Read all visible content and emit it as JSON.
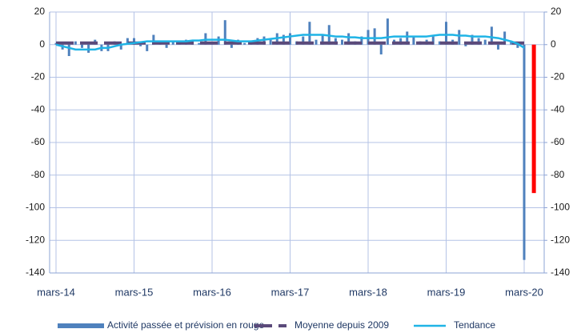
{
  "chart_data": {
    "type": "bar",
    "categories": [
      "mars-14",
      null,
      null,
      null,
      null,
      null,
      null,
      null,
      null,
      null,
      null,
      null,
      "mars-15",
      null,
      null,
      null,
      null,
      null,
      null,
      null,
      null,
      null,
      null,
      null,
      "mars-16",
      null,
      null,
      null,
      null,
      null,
      null,
      null,
      null,
      null,
      null,
      null,
      "mars-17",
      null,
      null,
      null,
      null,
      null,
      null,
      null,
      null,
      null,
      null,
      null,
      "mars-18",
      null,
      null,
      null,
      null,
      null,
      null,
      null,
      null,
      null,
      null,
      null,
      "mars-19",
      null,
      null,
      null,
      null,
      null,
      null,
      null,
      null,
      null,
      null,
      null,
      "mars-20",
      null
    ],
    "series": [
      {
        "name": "Activité passée et prévision en rouge",
        "type": "bar",
        "color": "#4f81bd",
        "last_color": "#ff0000",
        "values": [
          1,
          -3,
          -7,
          2,
          -2,
          -5,
          3,
          -4,
          -4,
          2,
          -3,
          4,
          4,
          -1,
          -4,
          6,
          1,
          -2,
          2,
          1,
          3,
          2,
          1,
          7,
          1,
          5,
          15,
          -2,
          3,
          1,
          2,
          4,
          5,
          3,
          7,
          6,
          7,
          2,
          5,
          14,
          3,
          6,
          12,
          4,
          3,
          7,
          2,
          5,
          9,
          10,
          -6,
          16,
          3,
          4,
          8,
          5,
          2,
          3,
          5,
          2,
          14,
          3,
          9,
          -1,
          6,
          4,
          3,
          11,
          -3,
          8,
          2,
          -2,
          -132,
          -91
        ]
      },
      {
        "name": "Moyenne depuis 2009",
        "type": "line",
        "color": "#5b4a7a",
        "dashed": true,
        "values": [
          1,
          1,
          1,
          1,
          1,
          1,
          1,
          1,
          1,
          1,
          1,
          1,
          1,
          1,
          1,
          1,
          1,
          1,
          1,
          1,
          1,
          1,
          1,
          1,
          1,
          1,
          1,
          1,
          1,
          1,
          1,
          1,
          1,
          1,
          1,
          1,
          1,
          1,
          1,
          1,
          1,
          1,
          1,
          1,
          1,
          1,
          1,
          1,
          1,
          1,
          1,
          1,
          1,
          1,
          1,
          1,
          1,
          1,
          1,
          1,
          1,
          1,
          1,
          1,
          1,
          1,
          1,
          1,
          1,
          1,
          1,
          1,
          1,
          null
        ]
      },
      {
        "name": "Tendance",
        "type": "line",
        "color": "#1fb4e6",
        "dashed": false,
        "values": [
          0,
          -1,
          -2,
          -3,
          -3,
          -3,
          -3,
          -2,
          -2,
          -1,
          0,
          0.5,
          1,
          1.5,
          2,
          2,
          2,
          2,
          2,
          2,
          2,
          2.5,
          2.5,
          3,
          3,
          3,
          3,
          2.5,
          2,
          2,
          2,
          2.5,
          3,
          3.5,
          4,
          4.5,
          5,
          5.5,
          6,
          6,
          6,
          6,
          5.5,
          5,
          5,
          4.5,
          4.5,
          4,
          4,
          4,
          4,
          4.5,
          5,
          5,
          5,
          5,
          5,
          5,
          5.5,
          6,
          6,
          6,
          5.5,
          5.5,
          5,
          5,
          5,
          4.5,
          4,
          3,
          2,
          0.5,
          -2,
          null
        ]
      }
    ],
    "ylim": [
      -140,
      20
    ],
    "yticks": [
      -140,
      -120,
      -100,
      -80,
      -60,
      -40,
      -20,
      0,
      20
    ],
    "y2lim": [
      -140,
      20
    ],
    "y2ticks": [
      -140,
      -120,
      -100,
      -80,
      -60,
      -40,
      -20,
      0,
      20
    ],
    "grid": true,
    "legend": "bottom"
  }
}
